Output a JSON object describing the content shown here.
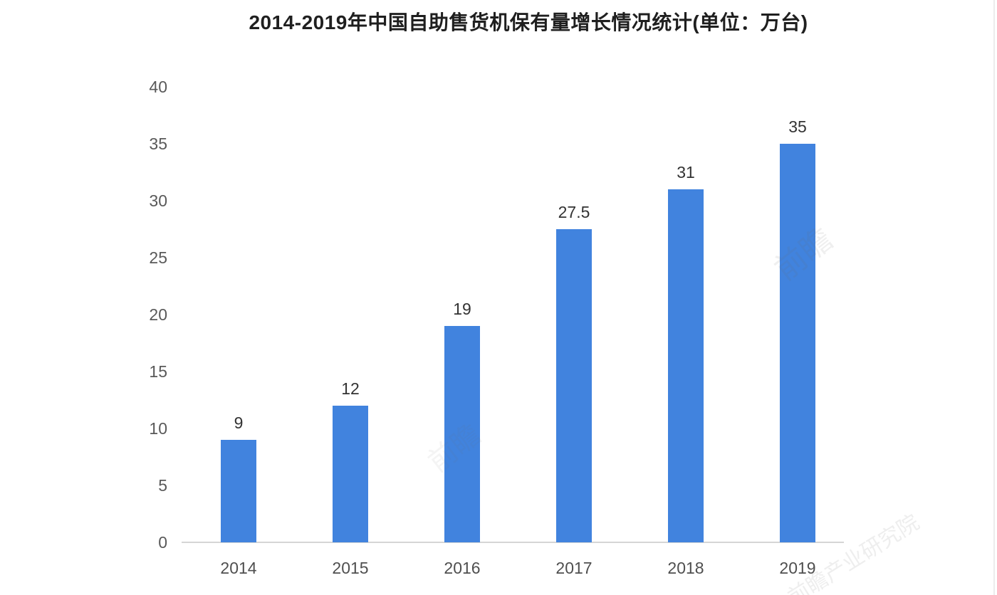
{
  "chart_data": {
    "type": "bar",
    "title": "2014-2019年中国自助售货机保有量增长情况统计(单位：万台)",
    "categories": [
      "2014",
      "2015",
      "2016",
      "2017",
      "2018",
      "2019"
    ],
    "values": [
      9,
      12,
      19,
      27.5,
      31,
      35
    ],
    "value_labels": [
      "9",
      "12",
      "19",
      "27.5",
      "31",
      "35"
    ],
    "unit": "万台",
    "xlabel": "",
    "ylabel": "",
    "ylim": [
      0,
      40
    ],
    "y_ticks": [
      40,
      35,
      30,
      25,
      20,
      15,
      10,
      5,
      0
    ],
    "grid": "off",
    "legend": "none",
    "bar_color": "#4183DE",
    "value_label_color": "#333333",
    "tick_label_color": "#595959",
    "axis_line_color": "#d5d5d5"
  },
  "watermark": {
    "text": "前瞻产业研究院",
    "short": "前瞻"
  }
}
